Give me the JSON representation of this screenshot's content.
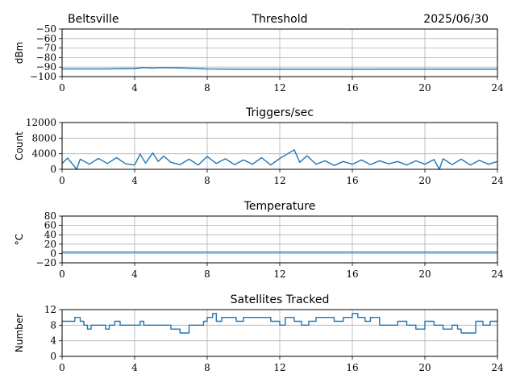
{
  "header": {
    "station": "Beltsville",
    "date": "2025/06/30"
  },
  "colors": {
    "line": "#1f77b4",
    "grid": "#b0b0b0"
  },
  "chart_data": [
    {
      "type": "line",
      "title": "Threshold",
      "ylabel": "dBm",
      "xlim": [
        0,
        24
      ],
      "ylim": [
        -100,
        -50
      ],
      "xticks": [
        0,
        4,
        8,
        12,
        16,
        20,
        24
      ],
      "yticks": [
        -100,
        -90,
        -80,
        -70,
        -60,
        -50
      ],
      "grid": true,
      "series": [
        {
          "x": [
            0,
            2,
            4,
            4.5,
            5,
            5.5,
            6,
            7,
            8,
            10,
            12,
            14,
            16,
            18,
            20,
            22,
            24
          ],
          "y": [
            -92,
            -92,
            -91.5,
            -90.5,
            -91,
            -90.5,
            -90.8,
            -91.2,
            -92,
            -92.3,
            -92.3,
            -92.3,
            -92.3,
            -92.2,
            -92.2,
            -92.2,
            -92.2
          ]
        }
      ]
    },
    {
      "type": "line",
      "title": "Triggers/sec",
      "ylabel": "Count",
      "xlim": [
        0,
        24
      ],
      "ylim": [
        0,
        12000
      ],
      "xticks": [
        0,
        4,
        8,
        12,
        16,
        20,
        24
      ],
      "yticks": [
        0,
        4000,
        8000,
        12000
      ],
      "grid": true,
      "series": [
        {
          "x": [
            0,
            0.3,
            0.6,
            0.8,
            1,
            1.5,
            2,
            2.5,
            3,
            3.5,
            4,
            4.3,
            4.6,
            5,
            5.3,
            5.6,
            6,
            6.5,
            7,
            7.5,
            8,
            8.5,
            9,
            9.5,
            10,
            10.5,
            11,
            11.5,
            12,
            12.4,
            12.8,
            13.1,
            13.5,
            14,
            14.5,
            15,
            15.5,
            16,
            16.5,
            17,
            17.5,
            18,
            18.5,
            19,
            19.5,
            20,
            20.5,
            20.8,
            21,
            21.5,
            22,
            22.5,
            23,
            23.5,
            24
          ],
          "y": [
            1500,
            2900,
            1200,
            0,
            2600,
            1300,
            2800,
            1500,
            3000,
            1400,
            1100,
            3900,
            1600,
            4200,
            2000,
            3400,
            1800,
            1200,
            2600,
            1100,
            3300,
            1500,
            2700,
            1200,
            2400,
            1300,
            3000,
            1100,
            2800,
            3900,
            5000,
            1800,
            3500,
            1300,
            2200,
            1000,
            2000,
            1300,
            2400,
            1200,
            2200,
            1400,
            2000,
            1100,
            2200,
            1300,
            2500,
            0,
            2700,
            1200,
            2600,
            1100,
            2300,
            1300,
            2000
          ]
        }
      ]
    },
    {
      "type": "line",
      "title": "Temperature",
      "ylabel": "°C",
      "xlim": [
        0,
        24
      ],
      "ylim": [
        -20,
        80
      ],
      "xticks": [
        0,
        4,
        8,
        12,
        16,
        20,
        24
      ],
      "yticks": [
        -20,
        0,
        20,
        40,
        60,
        80
      ],
      "grid": true,
      "series": [
        {
          "x": [
            0,
            4,
            8,
            12,
            16,
            20,
            24
          ],
          "y": [
            3,
            3,
            3,
            3,
            3,
            3,
            3
          ]
        }
      ]
    },
    {
      "type": "line",
      "title": "Satellites Tracked",
      "ylabel": "Number",
      "xlim": [
        0,
        24
      ],
      "ylim": [
        0,
        12
      ],
      "xticks": [
        0,
        4,
        8,
        12,
        16,
        20,
        24
      ],
      "yticks": [
        0,
        4,
        8,
        12
      ],
      "grid": true,
      "series": [
        {
          "x": [
            0,
            0.7,
            1.0,
            1.2,
            1.4,
            1.6,
            2.0,
            2.4,
            2.6,
            2.9,
            3.2,
            3.6,
            4.0,
            4.3,
            4.5,
            5.0,
            5.5,
            6.0,
            6.5,
            7.0,
            7.5,
            7.8,
            8.0,
            8.3,
            8.5,
            8.8,
            9.2,
            9.6,
            10.0,
            10.5,
            11.0,
            11.5,
            12.0,
            12.3,
            12.8,
            13.2,
            13.6,
            14.0,
            14.5,
            15.0,
            15.5,
            16.0,
            16.3,
            16.7,
            17.0,
            17.5,
            18.0,
            18.5,
            19.0,
            19.5,
            20.0,
            20.5,
            21.0,
            21.5,
            21.8,
            22.0,
            22.4,
            22.8,
            23.2,
            23.6,
            24.0
          ],
          "y": [
            9,
            10,
            9,
            8,
            7,
            8,
            8,
            7,
            8,
            9,
            8,
            8,
            8,
            9,
            8,
            8,
            8,
            7,
            6,
            8,
            8,
            9,
            10,
            11,
            9,
            10,
            10,
            9,
            10,
            10,
            10,
            9,
            8,
            10,
            9,
            8,
            9,
            10,
            10,
            9,
            10,
            11,
            10,
            9,
            10,
            8,
            8,
            9,
            8,
            7,
            9,
            8,
            7,
            8,
            7,
            6,
            6,
            9,
            8,
            9,
            9
          ]
        }
      ]
    }
  ]
}
